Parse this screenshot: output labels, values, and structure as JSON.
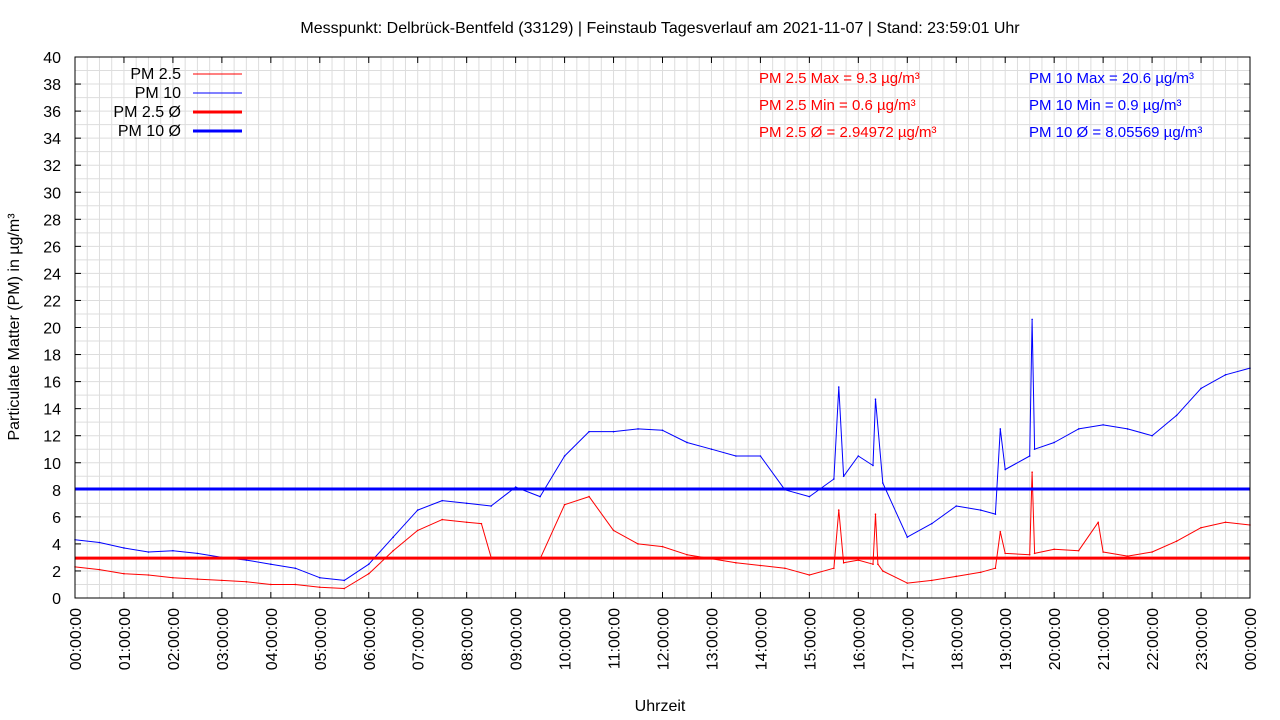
{
  "chart_data": {
    "type": "line",
    "title": "Messpunkt: Delbrück-Bentfeld (33129) | Feinstaub Tagesverlauf am 2021-11-07 | Stand: 23:59:01 Uhr",
    "xlabel": "Uhrzeit",
    "ylabel": "Particulate Matter (PM) in µg/m³",
    "ylim": [
      0,
      40
    ],
    "xlim_hours": [
      0,
      24
    ],
    "grid": true,
    "legend_position": "top-left",
    "x_ticks": [
      "00:00:00",
      "01:00:00",
      "02:00:00",
      "03:00:00",
      "04:00:00",
      "05:00:00",
      "06:00:00",
      "07:00:00",
      "08:00:00",
      "09:00:00",
      "10:00:00",
      "11:00:00",
      "12:00:00",
      "13:00:00",
      "14:00:00",
      "15:00:00",
      "16:00:00",
      "17:00:00",
      "18:00:00",
      "19:00:00",
      "20:00:00",
      "21:00:00",
      "22:00:00",
      "23:00:00",
      "00:00:00"
    ],
    "y_ticks": [
      0,
      2,
      4,
      6,
      8,
      10,
      12,
      14,
      16,
      18,
      20,
      22,
      24,
      26,
      28,
      30,
      32,
      34,
      36,
      38,
      40
    ],
    "series": [
      {
        "name": "PM 2.5",
        "color": "#ff0000",
        "x": [
          0,
          0.5,
          1,
          1.5,
          2,
          2.5,
          3,
          3.5,
          4,
          4.5,
          5,
          5.5,
          6,
          6.5,
          7,
          7.5,
          8,
          8.3,
          8.5,
          9,
          9.5,
          10,
          10.5,
          11,
          11.5,
          12,
          12.5,
          13,
          13.5,
          14,
          14.5,
          15,
          15.5,
          15.6,
          15.7,
          16,
          16.3,
          16.35,
          16.4,
          16.5,
          17,
          17.5,
          18,
          18.5,
          18.8,
          18.9,
          19,
          19.5,
          19.55,
          19.6,
          20,
          20.5,
          20.9,
          21,
          21.5,
          22,
          22.5,
          23,
          23.5,
          24
        ],
        "y": [
          2.3,
          2.1,
          1.8,
          1.7,
          1.5,
          1.4,
          1.3,
          1.2,
          1.0,
          1.0,
          0.8,
          0.7,
          1.8,
          3.5,
          5.0,
          5.8,
          5.6,
          5.5,
          3.0,
          3.0,
          2.9,
          6.9,
          7.5,
          5.0,
          4.0,
          3.8,
          3.2,
          2.9,
          2.6,
          2.4,
          2.2,
          1.7,
          2.2,
          6.5,
          2.6,
          2.8,
          2.5,
          6.2,
          2.5,
          2.0,
          1.1,
          1.3,
          1.6,
          1.9,
          2.2,
          4.9,
          3.3,
          3.2,
          9.3,
          3.3,
          3.6,
          3.5,
          5.6,
          3.4,
          3.1,
          3.4,
          4.2,
          5.2,
          5.6,
          5.4
        ]
      },
      {
        "name": "PM 10",
        "color": "#0000ff",
        "x": [
          0,
          0.5,
          1,
          1.5,
          2,
          2.5,
          3,
          3.5,
          4,
          4.5,
          5,
          5.5,
          6,
          6.5,
          7,
          7.5,
          8,
          8.5,
          9,
          9.5,
          10,
          10.5,
          11,
          11.5,
          12,
          12.5,
          13,
          13.5,
          14,
          14.5,
          15,
          15.5,
          15.6,
          15.7,
          16,
          16.3,
          16.35,
          16.5,
          17,
          17.5,
          18,
          18.5,
          18.8,
          18.9,
          19,
          19.5,
          19.55,
          19.6,
          20,
          20.5,
          21,
          21.5,
          22,
          22.5,
          23,
          23.5,
          24
        ],
        "y": [
          4.3,
          4.1,
          3.7,
          3.4,
          3.5,
          3.3,
          3.0,
          2.8,
          2.5,
          2.2,
          1.5,
          1.3,
          2.5,
          4.5,
          6.5,
          7.2,
          7.0,
          6.8,
          8.2,
          7.5,
          10.5,
          12.3,
          12.3,
          12.5,
          12.4,
          11.5,
          11.0,
          10.5,
          10.5,
          8.0,
          7.5,
          8.8,
          15.6,
          9.0,
          10.5,
          9.8,
          14.7,
          8.5,
          4.5,
          5.5,
          6.8,
          6.5,
          6.2,
          12.5,
          9.5,
          10.5,
          20.6,
          11.0,
          11.5,
          12.5,
          12.8,
          12.5,
          12.0,
          13.5,
          15.5,
          16.5,
          17.0
        ]
      },
      {
        "name": "PM 2.5 Ø",
        "color": "#ff0000",
        "constant": 2.94972
      },
      {
        "name": "PM 10 Ø",
        "color": "#0000ff",
        "constant": 8.05569
      }
    ],
    "annotations": {
      "pm25_max": "PM 2.5 Max = 9.3 µg/m³",
      "pm25_min": "PM 2.5 Min = 0.6 µg/m³",
      "pm25_avg": "PM 2.5 Ø = 2.94972 µg/m³",
      "pm10_max": "PM 10 Max = 20.6 µg/m³",
      "pm10_min": "PM 10 Min = 0.9 µg/m³",
      "pm10_avg": "PM 10 Ø = 8.05569 µg/m³"
    }
  },
  "legend": {
    "pm25": "PM 2.5",
    "pm10": "PM 10",
    "pm25_avg": "PM 2.5 Ø",
    "pm10_avg": "PM 10 Ø"
  }
}
